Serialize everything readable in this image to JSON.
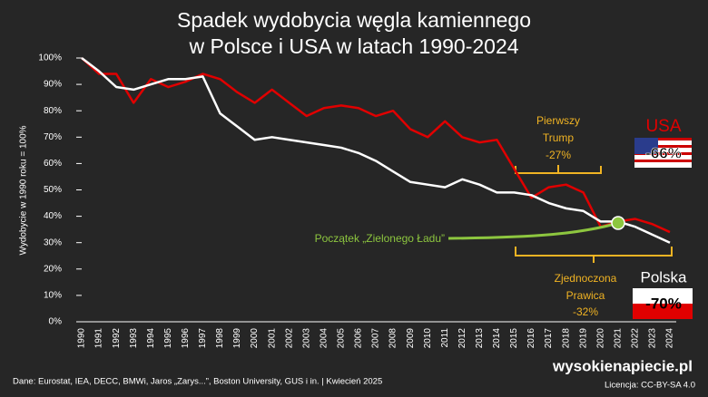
{
  "chart_data": {
    "type": "line",
    "title": [
      "Spadek wydobycia węgla kamiennego",
      "w Polsce i USA w latach 1990-2024"
    ],
    "y_label": "Wydobycie w 1990 roku = 100%",
    "categories": [
      "1990",
      "1991",
      "1992",
      "1993",
      "1994",
      "1995",
      "1996",
      "1997",
      "1998",
      "1999",
      "2000",
      "2001",
      "2002",
      "2003",
      "2004",
      "2005",
      "2006",
      "2007",
      "2008",
      "2009",
      "2010",
      "2011",
      "2012",
      "2013",
      "2014",
      "2015",
      "2016",
      "2017",
      "2018",
      "2019",
      "2020",
      "2021",
      "2022",
      "2023",
      "2024"
    ],
    "series": [
      {
        "name": "USA",
        "color": "#e00000",
        "values": [
          100,
          94,
          94,
          83,
          92,
          89,
          91,
          94,
          92,
          87,
          83,
          88,
          83,
          78,
          81,
          82,
          81,
          78,
          80,
          73,
          70,
          76,
          70,
          68,
          69,
          58,
          47,
          51,
          52,
          49,
          36,
          38,
          39,
          37,
          34
        ],
        "value_label": "-66%"
      },
      {
        "name": "Polska",
        "color": "#ffffff",
        "values": [
          100,
          95,
          89,
          88,
          90,
          92,
          92,
          93,
          79,
          74,
          69,
          70,
          69,
          68,
          67,
          66,
          64,
          61,
          57,
          53,
          52,
          51,
          54,
          52,
          49,
          49,
          48,
          45,
          43,
          42,
          38,
          38,
          36,
          33,
          30
        ],
        "value_label": "-70%"
      }
    ],
    "ylim": [
      0,
      100
    ],
    "yticks": [
      {
        "value": 0,
        "label": "0%"
      },
      {
        "value": 10,
        "label": "10%"
      },
      {
        "value": 20,
        "label": "20%"
      },
      {
        "value": 30,
        "label": "30%"
      },
      {
        "value": 40,
        "label": "40%"
      },
      {
        "value": 50,
        "label": "50%"
      },
      {
        "value": 60,
        "label": "60%"
      },
      {
        "value": 70,
        "label": "70%"
      },
      {
        "value": 80,
        "label": "80%"
      },
      {
        "value": 90,
        "label": "90%"
      },
      {
        "value": 100,
        "label": "100%"
      }
    ],
    "grid": false,
    "annotations": {
      "trump": [
        "Pierwszy",
        "Trump",
        "-27%"
      ],
      "prawica": [
        "Zjednoczona",
        "Prawica",
        "-32%"
      ],
      "green_deal": "Początek „Zielonego Ładu”"
    },
    "source": "Dane: Eurostat, IEA, DECC, BMWi, Jaros „Zarys...”, Boston University, GUS i in.  |  Kwiecień 2025",
    "brand": "wysokienapiecie.pl",
    "license": "Licencja: CC-BY-SA 4.0"
  }
}
